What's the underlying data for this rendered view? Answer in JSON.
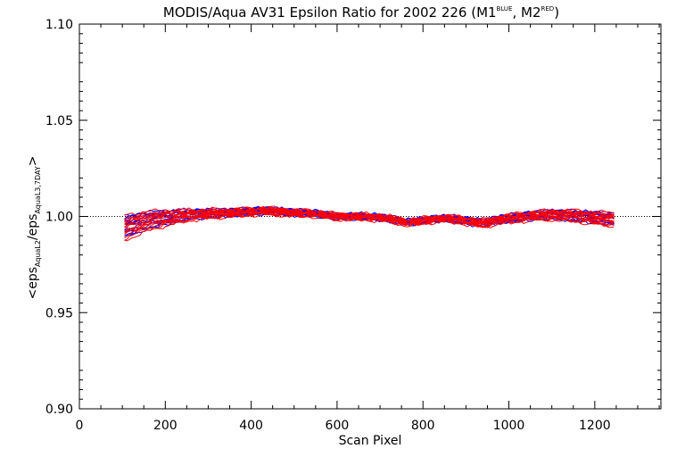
{
  "chart_data": {
    "type": "line",
    "title": {
      "main": "MODIS/Aqua AV31 Epsilon Ratio for 2002 226 (M1",
      "sup1": "BLUE",
      "mid": ", M2",
      "sup2": "RED",
      "end": ")"
    },
    "xlabel": "Scan Pixel",
    "ylabel": {
      "open": "<eps",
      "sub1": "AquaL2",
      "slash": "/eps",
      "sub2": "AquaL3,7DAY",
      "close": ">"
    },
    "xlim": [
      0,
      1354
    ],
    "ylim": [
      0.9,
      1.1
    ],
    "x_ticks": [
      0,
      200,
      400,
      600,
      800,
      1000,
      1200
    ],
    "x_tick_labels": [
      "0",
      "200",
      "400",
      "600",
      "800",
      "1000",
      "1200"
    ],
    "y_ticks": [
      0.9,
      0.95,
      1.0,
      1.05,
      1.1
    ],
    "y_tick_labels": [
      "0.90",
      "0.95",
      "1.00",
      "1.05",
      "1.10"
    ],
    "reference_line": 1.0,
    "x_range": [
      105,
      1250
    ],
    "series_colors": {
      "M1": "#0000ff",
      "M2": "#ff0000"
    },
    "profile": {
      "x": [
        105,
        150,
        200,
        250,
        300,
        350,
        400,
        430,
        470,
        500,
        550,
        600,
        650,
        700,
        730,
        760,
        790,
        820,
        850,
        880,
        910,
        940,
        980,
        1020,
        1060,
        1100,
        1150,
        1200,
        1250
      ],
      "mean": [
        0.9945,
        0.9975,
        0.9995,
        1.0008,
        1.0015,
        1.002,
        1.0025,
        1.003,
        1.0025,
        1.002,
        1.0015,
        1.0,
        1.0,
        0.9995,
        0.9985,
        0.997,
        0.9975,
        0.9985,
        0.999,
        0.9985,
        0.9975,
        0.9965,
        0.9985,
        0.9995,
        1.0005,
        1.001,
        1.0005,
        0.9995,
        0.9985
      ],
      "spread": [
        0.0055,
        0.0045,
        0.0035,
        0.0025,
        0.002,
        0.0018,
        0.0016,
        0.0016,
        0.0016,
        0.0015,
        0.0014,
        0.0014,
        0.0014,
        0.0014,
        0.0014,
        0.0014,
        0.0014,
        0.0014,
        0.0014,
        0.0015,
        0.0016,
        0.0017,
        0.0018,
        0.0019,
        0.002,
        0.0022,
        0.0025,
        0.0028,
        0.003
      ]
    },
    "series": [
      {
        "color": "M1",
        "offset": 0.6
      },
      {
        "color": "M1",
        "offset": -0.4
      },
      {
        "color": "M1",
        "offset": 1.0
      },
      {
        "color": "M1",
        "offset": -1.0
      },
      {
        "color": "M1",
        "offset": 0.2
      },
      {
        "color": "M1",
        "offset": -0.8
      },
      {
        "color": "M1",
        "offset": 0.8
      },
      {
        "color": "M1",
        "offset": -0.2
      },
      {
        "color": "M1",
        "offset": 0.4
      },
      {
        "color": "M1",
        "offset": -0.6
      },
      {
        "color": "M1",
        "offset": 0.0
      },
      {
        "color": "M1",
        "offset": 0.9
      },
      {
        "color": "M1",
        "offset": -0.9
      },
      {
        "color": "M1",
        "offset": 0.3
      },
      {
        "color": "M2",
        "offset": -0.3
      },
      {
        "color": "M2",
        "offset": 0.7
      },
      {
        "color": "M2",
        "offset": -0.7
      },
      {
        "color": "M2",
        "offset": 0.1
      },
      {
        "color": "M2",
        "offset": -1.1
      },
      {
        "color": "M2",
        "offset": 0.5
      },
      {
        "color": "M2",
        "offset": -0.5
      },
      {
        "color": "M2",
        "offset": 1.1
      },
      {
        "color": "M2",
        "offset": -0.1
      },
      {
        "color": "M2",
        "offset": 0.35
      },
      {
        "color": "M2",
        "offset": -0.85
      },
      {
        "color": "M2",
        "offset": 0.75
      },
      {
        "color": "M2",
        "offset": -1.3
      },
      {
        "color": "M2",
        "offset": 0.15
      },
      {
        "color": "M2",
        "offset": -0.45
      },
      {
        "color": "M2",
        "offset": 0.55
      }
    ]
  }
}
